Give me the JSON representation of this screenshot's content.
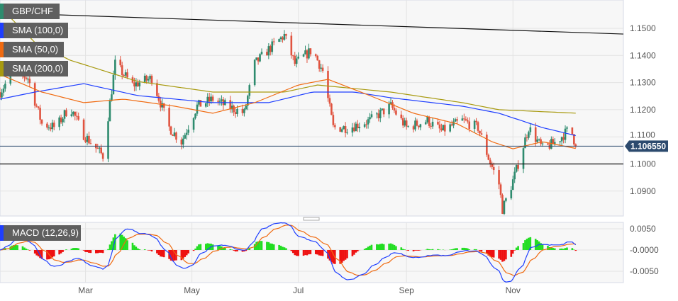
{
  "chart_data": {
    "type": "candlestick",
    "symbol": "GBP/CHF",
    "legend": [
      {
        "label": "GBP/CHF",
        "color": "#2e8b6e"
      },
      {
        "label": "SMA (100,0)",
        "color": "#1f3fff"
      },
      {
        "label": "SMA (50,0)",
        "color": "#f06a10"
      },
      {
        "label": "SMA (200,0)",
        "color": "#a89a10"
      }
    ],
    "last_price": "1.106550",
    "y_ticks": [
      "1.1500",
      "1.1400",
      "1.1300",
      "1.1200",
      "1.1100",
      "1.1000",
      "1.0900"
    ],
    "ylim": [
      1.0805,
      1.1605
    ],
    "x_ticks": [
      "Mar",
      "May",
      "Jul",
      "Sep",
      "Nov"
    ],
    "close_path": [
      [
        "Jan 11",
        1.1265
      ],
      [
        "Jan 19",
        1.1343
      ],
      [
        "Jan 27",
        1.1317
      ],
      [
        "Feb 4",
        1.1148
      ],
      [
        "Feb 12",
        1.1134
      ],
      [
        "Feb 20",
        1.1213
      ],
      [
        "Feb 28",
        1.1108
      ],
      [
        "Mar 11",
        1.103
      ],
      [
        "Mar 18",
        1.1369
      ],
      [
        "Mar 28",
        1.1291
      ],
      [
        "Apr 8",
        1.1317
      ],
      [
        "Apr 18",
        1.1134
      ],
      [
        "Apr 25",
        1.1082
      ],
      [
        "May 4",
        1.1213
      ],
      [
        "May 13",
        1.1239
      ],
      [
        "May 21",
        1.1213
      ],
      [
        "May 31",
        1.1187
      ],
      [
        "Jun 6",
        1.1369
      ],
      [
        "Jun 14",
        1.1422
      ],
      [
        "Jun 23",
        1.1474
      ],
      [
        "Jun 29",
        1.1369
      ],
      [
        "Jul 9",
        1.1422
      ],
      [
        "Jul 15",
        1.1343
      ],
      [
        "Jul 21",
        1.1134
      ],
      [
        "Jul 30",
        1.1134
      ],
      [
        "Aug 11",
        1.116
      ],
      [
        "Aug 23",
        1.1213
      ],
      [
        "Sep 1",
        1.1134
      ],
      [
        "Sep 13",
        1.116
      ],
      [
        "Sep 21",
        1.1121
      ],
      [
        "Oct 3",
        1.116
      ],
      [
        "Oct 12",
        1.1134
      ],
      [
        "Oct 19",
        1.1004
      ],
      [
        "Oct 24",
        1.0926
      ],
      [
        "Oct 26",
        1.0834
      ],
      [
        "Oct 30",
        1.0899
      ],
      [
        "Nov 3",
        1.0978
      ],
      [
        "Nov 10",
        1.1134
      ],
      [
        "Nov 18",
        1.1056
      ],
      [
        "Nov 26",
        1.1082
      ],
      [
        "Dec 4",
        1.1134
      ],
      [
        "Dec 7",
        1.10655
      ]
    ],
    "sma200": [
      [
        "Jan 11",
        1.1578
      ],
      [
        "Jan 31",
        1.1448
      ],
      [
        "Feb 20",
        1.1383
      ],
      [
        "Mar 31",
        1.1304
      ],
      [
        "May 13",
        1.1265
      ],
      [
        "Jun 23",
        1.1265
      ],
      [
        "Jul 12",
        1.1291
      ],
      [
        "Aug 23",
        1.1265
      ],
      [
        "Oct 3",
        1.1226
      ],
      [
        "Oct 24",
        1.12
      ],
      [
        "Dec 8",
        1.1187
      ]
    ],
    "sma100": [
      [
        "Jan 11",
        1.1239
      ],
      [
        "Jan 31",
        1.1265
      ],
      [
        "Feb 28",
        1.1296
      ],
      [
        "Mar 31",
        1.1252
      ],
      [
        "May 13",
        1.1226
      ],
      [
        "Jun 14",
        1.1226
      ],
      [
        "Jul 9",
        1.1265
      ],
      [
        "Aug 2",
        1.1265
      ],
      [
        "Aug 23",
        1.1244
      ],
      [
        "Oct 3",
        1.1213
      ],
      [
        "Oct 24",
        1.1187
      ],
      [
        "Nov 18",
        1.1134
      ],
      [
        "Dec 8",
        1.1103
      ]
    ],
    "sma50": [
      [
        "Jan 11",
        1.133
      ],
      [
        "Feb 4",
        1.1265
      ],
      [
        "Feb 28",
        1.1226
      ],
      [
        "Mar 23",
        1.1239
      ],
      [
        "Apr 21",
        1.1213
      ],
      [
        "May 13",
        1.1187
      ],
      [
        "Jun 6",
        1.1226
      ],
      [
        "Jul 1",
        1.1291
      ],
      [
        "Jul 18",
        1.1312
      ],
      [
        "Aug 11",
        1.1252
      ],
      [
        "Sep 5",
        1.1187
      ],
      [
        "Sep 30",
        1.1148
      ],
      [
        "Oct 20",
        1.1082
      ],
      [
        "Nov 1",
        1.1056
      ],
      [
        "Nov 18",
        1.1082
      ],
      [
        "Dec 8",
        1.1056
      ]
    ],
    "trendline": [
      [
        "Jan 11",
        1.1557
      ],
      [
        "Dec 25",
        1.1479
      ]
    ],
    "support_level": 1.1,
    "macd": {
      "label": "MACD (12,26,9)",
      "y_ticks": [
        "0.0050",
        "-0.0000",
        "-0.0050"
      ],
      "ylim": [
        -0.0077,
        0.0065
      ],
      "macd_color": "#1f3fff",
      "signal_color": "#f06a10",
      "pos_color": "#22dd22",
      "neg_color": "#ee1111"
    },
    "colors": {
      "up": "#2e8b6e",
      "down": "#e0533f",
      "last_price_bg": "#2c4a6e"
    }
  }
}
